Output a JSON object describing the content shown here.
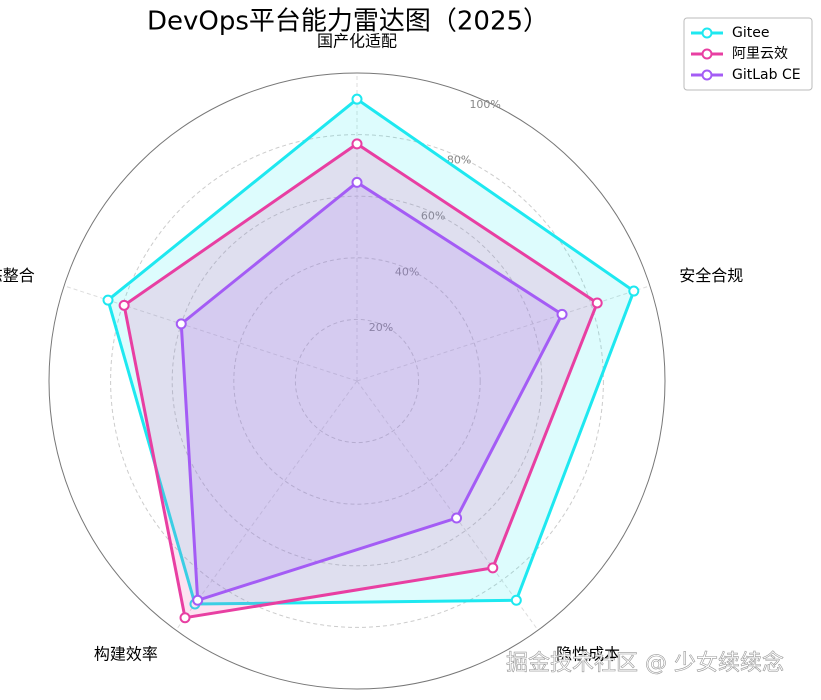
{
  "chart_data": {
    "type": "radar",
    "title": "DevOps平台能力雷达图（2025）",
    "categories": [
      "国产化适配",
      "安全合规",
      "隐性成本",
      "构建效率",
      "生态整合"
    ],
    "series": [
      {
        "name": "Gitee",
        "color": "#1ee8f0",
        "values": [
          91.5,
          94.5,
          88,
          89.5,
          85
        ]
      },
      {
        "name": "阿里云效",
        "color": "#e83fa2",
        "values": [
          77,
          82,
          75,
          95,
          79.5
        ]
      },
      {
        "name": "GitLab CE",
        "color": "#a45cf5",
        "values": [
          64.5,
          70,
          55,
          88,
          60
        ]
      }
    ],
    "rlim": [
      0,
      100
    ],
    "rticks": [
      {
        "value": 20,
        "label": "20%"
      },
      {
        "value": 40,
        "label": "40%"
      },
      {
        "value": 60,
        "label": "60%"
      },
      {
        "value": 80,
        "label": "80%"
      },
      {
        "value": 100,
        "label": "100%"
      }
    ],
    "grid": true,
    "legend": "upper right",
    "watermark": "掘金技术社区 @ 少女续续念"
  }
}
